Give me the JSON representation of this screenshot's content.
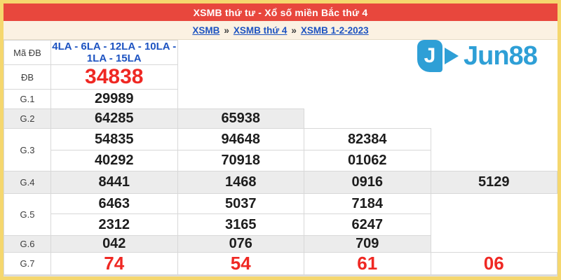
{
  "page": {
    "title": "XSMB thứ tư - Xổ số miền Bắc thứ 4",
    "breadcrumb": [
      {
        "label": "XSMB"
      },
      {
        "label": "XSMB thứ 4"
      },
      {
        "label": "XSMB 1-2-2023"
      }
    ],
    "breadcrumb_separator": "»"
  },
  "logo": {
    "text": "Jun88",
    "icon_letter": "J",
    "color": "#2E9FD6"
  },
  "results_table": {
    "rows": [
      {
        "label": "Mã ĐB",
        "type": "code",
        "shaded": false,
        "lines": [
          [
            "4LA - 6LA - 12LA - 10LA - 1LA - 15LA"
          ]
        ]
      },
      {
        "label": "ĐB",
        "type": "special",
        "shaded": false,
        "lines": [
          [
            "34838"
          ]
        ]
      },
      {
        "label": "G.1",
        "type": "normal",
        "shaded": false,
        "lines": [
          [
            "29989"
          ]
        ]
      },
      {
        "label": "G.2",
        "type": "normal",
        "shaded": true,
        "lines": [
          [
            "64285",
            "65938"
          ]
        ]
      },
      {
        "label": "G.3",
        "type": "normal",
        "shaded": false,
        "lines": [
          [
            "54835",
            "94648",
            "82384"
          ],
          [
            "40292",
            "70918",
            "01062"
          ]
        ]
      },
      {
        "label": "G.4",
        "type": "normal",
        "shaded": true,
        "lines": [
          [
            "8441",
            "1468",
            "0916",
            "5129"
          ]
        ]
      },
      {
        "label": "G.5",
        "type": "normal",
        "shaded": false,
        "lines": [
          [
            "6463",
            "5037",
            "7184"
          ],
          [
            "2312",
            "3165",
            "6247"
          ]
        ]
      },
      {
        "label": "G.6",
        "type": "normal",
        "shaded": true,
        "lines": [
          [
            "042",
            "076",
            "709"
          ]
        ]
      },
      {
        "label": "G.7",
        "type": "red",
        "shaded": false,
        "lines": [
          [
            "74",
            "54",
            "61",
            "06"
          ]
        ]
      }
    ]
  },
  "colors": {
    "header_bg": "#E8473D",
    "breadcrumb_bg": "#FBF1E2",
    "link_blue": "#1D53C1",
    "number_red": "#EF2823",
    "shaded_row": "#ECECEC",
    "frame_yellow": "#F5D76E",
    "logo_blue": "#2E9FD6"
  }
}
